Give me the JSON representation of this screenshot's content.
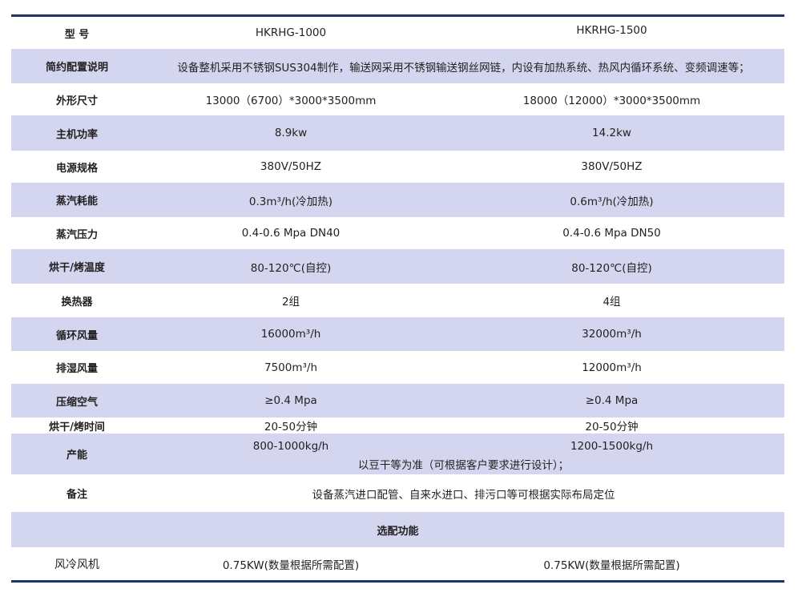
{
  "columns": {
    "label": "型 号",
    "m1": "HKRHG-1000",
    "m2": "HKRHG-1500"
  },
  "rows": [
    {
      "label": "简约配置说明",
      "span": "设备整机采用不锈钢SUS304制作，输送网采用不锈钢输送钢丝网链，内设有加热系统、热风内循环系统、变频调速等；"
    },
    {
      "label": "外形尺寸",
      "m1": "13000（6700）*3000*3500mm",
      "m2": "18000（12000）*3000*3500mm"
    },
    {
      "label": "主机功率",
      "m1": "8.9kw",
      "m2": "14.2kw"
    },
    {
      "label": "电源规格",
      "m1": "380V/50HZ",
      "m2": "380V/50HZ"
    },
    {
      "label": "蒸汽耗能",
      "m1": "0.3m³/h(冷加热)",
      "m2": "0.6m³/h(冷加热)"
    },
    {
      "label": "蒸汽压力",
      "m1": "0.4-0.6 Mpa  DN40",
      "m2": "0.4-0.6 Mpa  DN50"
    },
    {
      "label": "烘干/烤温度",
      "m1": "80-120℃(自控)",
      "m2": "80-120℃(自控)"
    },
    {
      "label": "换热器",
      "m1": "2组",
      "m2": "4组"
    },
    {
      "label": "循环风量",
      "m1": "16000m³/h",
      "m2": "32000m³/h"
    },
    {
      "label": "排湿风量",
      "m1": "7500m³/h",
      "m2": "12000m³/h"
    },
    {
      "label": "压缩空气",
      "m1": "≥0.4 Mpa",
      "m2": "≥0.4 Mpa"
    },
    {
      "label": "烘干/烤时间",
      "m1": "20-50分钟",
      "m2": "20-50分钟"
    }
  ],
  "capacity": {
    "label": "产能",
    "m1": "800-1000kg/h",
    "m2": "1200-1500kg/h",
    "note": "以豆干等为准（可根据客户要求进行设计）；"
  },
  "remark": {
    "label": "备注",
    "text": "设备蒸汽进口配管、自来水进口、排污口等可根据实际布局定位"
  },
  "options_header": "选配功能",
  "option": {
    "label": "风冷风机",
    "m1": "0.75KW(数量根据所需配置)",
    "m2": "0.75KW(数量根据所需配置)"
  }
}
